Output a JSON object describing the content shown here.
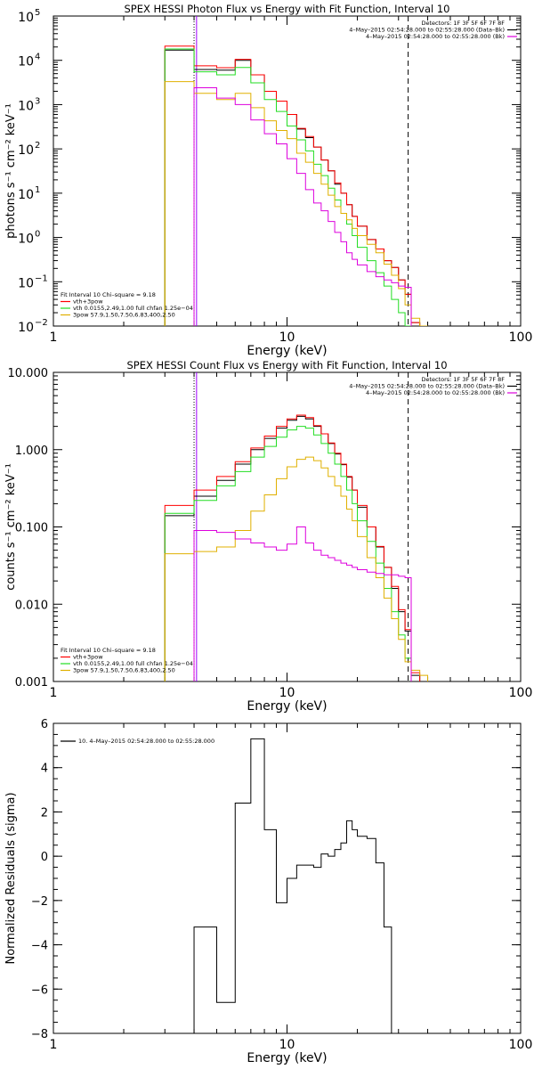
{
  "colors": {
    "black": "#000000",
    "red": "#ff0000",
    "green": "#22dd22",
    "yellow": "#e0b000",
    "magenta": "#dd00dd",
    "purple": "#a000ff"
  },
  "chart_data": [
    {
      "type": "line",
      "title": "SPEX HESSI Photon Flux vs Energy with Fit Function, Interval 10",
      "xlabel": "Energy (keV)",
      "ylabel": "photons s⁻¹ cm⁻² keV⁻¹",
      "xscale": "log",
      "yscale": "log",
      "xlim": [
        1,
        100
      ],
      "ylim": [
        0.01,
        100000
      ],
      "xticks": [
        {
          "v": 1,
          "label": "1"
        },
        {
          "v": 10,
          "label": "10"
        },
        {
          "v": 100,
          "label": "100"
        }
      ],
      "yticks": [
        {
          "v": 0.01,
          "base": "10",
          "exp": "−2"
        },
        {
          "v": 0.1,
          "base": "10",
          "exp": "−1"
        },
        {
          "v": 1,
          "base": "10",
          "exp": "0"
        },
        {
          "v": 10,
          "base": "10",
          "exp": "1"
        },
        {
          "v": 100,
          "base": "10",
          "exp": "2"
        },
        {
          "v": 1000,
          "base": "10",
          "exp": "3"
        },
        {
          "v": 10000,
          "base": "10",
          "exp": "4"
        },
        {
          "v": 100000,
          "base": "10",
          "exp": "5"
        }
      ],
      "vlines": [
        {
          "x": 4.0,
          "style": "dotted",
          "color": "black"
        },
        {
          "x": 4.1,
          "style": "solid",
          "color": "purple"
        },
        {
          "x": 33,
          "style": "dashed",
          "color": "black"
        }
      ],
      "header_lines": [
        "Detectors: 1F 3F 5F 6F 7F 8F",
        "4–May–2015 02:54:28.000 to 02:55:28.000 (Data–Bk)",
        "4–May–2015 02:54:28.000 to 02:55:28.000 (Bk)"
      ],
      "header_colors": [
        "",
        "black",
        "magenta"
      ],
      "legend_lines": [
        "Fit Interval 10   Chi–square = 9.18",
        "vth+3pow",
        "vth 0.0155,2.49,1.00  full chfan 1.25e−04",
        "3pow 57.9,1.50,7.50,6.83,400,2.50"
      ],
      "legend_colors": [
        "",
        "red",
        "green",
        "yellow"
      ],
      "edges": [
        3,
        4,
        5,
        6,
        7,
        8,
        9,
        10,
        11,
        12,
        13,
        14,
        15,
        16,
        17,
        18,
        19,
        20,
        22,
        24,
        26,
        28,
        30,
        32,
        34,
        37,
        40
      ],
      "series": [
        {
          "color": "black",
          "values": [
            17000,
            6200,
            6000,
            10000,
            4700,
            2000,
            1200,
            600,
            280,
            180,
            110,
            56,
            32,
            16,
            10,
            5.5,
            3.0,
            1.8,
            0.9,
            0.55,
            0.3,
            0.21,
            0.11,
            0.052,
            0.012,
            0.008
          ]
        },
        {
          "color": "red",
          "values": [
            21000,
            7500,
            6800,
            10500,
            4700,
            2000,
            1200,
            600,
            290,
            190,
            110,
            56,
            32,
            17,
            10,
            5.5,
            3.0,
            1.8,
            0.9,
            0.55,
            0.3,
            0.21,
            0.11,
            0.052,
            0.012,
            0.008
          ]
        },
        {
          "color": "green",
          "values": [
            18000,
            5500,
            4700,
            6900,
            3100,
            1300,
            700,
            330,
            160,
            90,
            45,
            25,
            13,
            7,
            3.5,
            2,
            1.1,
            0.6,
            0.3,
            0.16,
            0.08,
            0.04,
            0.02,
            0.01,
            0.008,
            0.008
          ]
        },
        {
          "color": "yellow",
          "values": [
            3300,
            1800,
            1300,
            1800,
            850,
            430,
            260,
            170,
            80,
            50,
            28,
            16,
            9,
            5,
            3.5,
            2.5,
            1.6,
            1.1,
            0.7,
            0.45,
            0.25,
            0.14,
            0.07,
            0.03,
            0.015,
            0.01
          ]
        },
        {
          "color": "magenta",
          "values": [
            0.005,
            2400,
            1400,
            1000,
            450,
            220,
            130,
            60,
            28,
            12,
            6,
            4,
            2.3,
            1.3,
            0.8,
            0.45,
            0.32,
            0.24,
            0.17,
            0.13,
            0.11,
            0.095,
            0.08,
            0.075,
            0.008,
            0.008
          ]
        }
      ]
    },
    {
      "type": "line",
      "title": "SPEX HESSI Count Flux vs Energy with Fit Function, Interval 10",
      "xlabel": "Energy (keV)",
      "ylabel": "counts s⁻¹ cm⁻² keV⁻¹",
      "xscale": "log",
      "yscale": "log",
      "xlim": [
        1,
        100
      ],
      "ylim": [
        0.001,
        10
      ],
      "xticks": [
        {
          "v": 1,
          "label": "1"
        },
        {
          "v": 10,
          "label": "10"
        },
        {
          "v": 100,
          "label": "100"
        }
      ],
      "yticks": [
        {
          "v": 0.001,
          "label": "0.001"
        },
        {
          "v": 0.01,
          "label": "0.010"
        },
        {
          "v": 0.1,
          "label": "0.100"
        },
        {
          "v": 1,
          "label": "1.000"
        },
        {
          "v": 10,
          "label": "10.000"
        }
      ],
      "vlines": [
        {
          "x": 4.0,
          "style": "dotted",
          "color": "black"
        },
        {
          "x": 4.1,
          "style": "solid",
          "color": "purple"
        },
        {
          "x": 33,
          "style": "dashed",
          "color": "black"
        }
      ],
      "header_lines": [
        "Detectors: 1F 3F 5F 6F 7F 8F",
        "4–May–2015 02:54:28.000 to 02:55:28.000 (Data–Bk)",
        "4–May–2015 02:54:28.000 to 02:55:28.000 (Bk)"
      ],
      "header_colors": [
        "",
        "black",
        "magenta"
      ],
      "legend_lines": [
        "Fit Interval 10   Chi–square = 9.18",
        "vth+3pow",
        "vth 0.0155,2.49,1.00  full chfan 1.25e−04",
        "3pow 57.9,1.50,7.50,6.83,400,2.50"
      ],
      "legend_colors": [
        "",
        "red",
        "green",
        "yellow"
      ],
      "edges": [
        3,
        4,
        5,
        6,
        7,
        8,
        9,
        10,
        11,
        12,
        13,
        14,
        15,
        16,
        17,
        18,
        19,
        20,
        22,
        24,
        26,
        28,
        30,
        32,
        34,
        37,
        40,
        45
      ],
      "series": [
        {
          "color": "black",
          "values": [
            0.14,
            0.25,
            0.4,
            0.65,
            1.0,
            1.4,
            1.9,
            2.4,
            2.7,
            2.5,
            2.0,
            1.6,
            1.2,
            0.88,
            0.64,
            0.44,
            0.3,
            0.18,
            0.1,
            0.055,
            0.03,
            0.016,
            0.008,
            0.0045,
            0.0012,
            0.0009,
            0.0009
          ]
        },
        {
          "color": "red",
          "values": [
            0.19,
            0.3,
            0.45,
            0.7,
            1.05,
            1.5,
            2.0,
            2.5,
            2.8,
            2.6,
            2.05,
            1.6,
            1.22,
            0.9,
            0.65,
            0.45,
            0.3,
            0.19,
            0.1,
            0.056,
            0.03,
            0.017,
            0.0085,
            0.0047,
            0.0013,
            0.0009,
            0.0009
          ]
        },
        {
          "color": "green",
          "values": [
            0.15,
            0.22,
            0.34,
            0.52,
            0.8,
            1.1,
            1.45,
            1.8,
            2.0,
            1.9,
            1.55,
            1.2,
            0.9,
            0.65,
            0.45,
            0.3,
            0.2,
            0.12,
            0.065,
            0.034,
            0.016,
            0.008,
            0.004,
            0.002,
            0.0009,
            0.0009,
            0.0009
          ]
        },
        {
          "color": "yellow",
          "values": [
            0.045,
            0.048,
            0.055,
            0.09,
            0.16,
            0.26,
            0.42,
            0.6,
            0.75,
            0.8,
            0.72,
            0.58,
            0.45,
            0.34,
            0.25,
            0.17,
            0.12,
            0.075,
            0.04,
            0.022,
            0.012,
            0.0065,
            0.0035,
            0.0018,
            0.0014,
            0.0012,
            0.0009
          ]
        },
        {
          "color": "magenta",
          "values": [
            0.0005,
            0.09,
            0.085,
            0.07,
            0.062,
            0.055,
            0.05,
            0.06,
            0.1,
            0.062,
            0.05,
            0.043,
            0.04,
            0.037,
            0.034,
            0.032,
            0.03,
            0.028,
            0.026,
            0.025,
            0.024,
            0.024,
            0.023,
            0.022,
            0.0009,
            0.0009,
            0.0009
          ]
        }
      ]
    },
    {
      "type": "line",
      "title": "",
      "xlabel": "Energy (keV)",
      "ylabel": "Normalized Residuals (sigma)",
      "xscale": "log",
      "yscale": "linear",
      "xlim": [
        1,
        100
      ],
      "ylim": [
        -8,
        6
      ],
      "xticks": [
        {
          "v": 1,
          "label": "1"
        },
        {
          "v": 10,
          "label": "10"
        },
        {
          "v": 100,
          "label": "100"
        }
      ],
      "yticks": [
        {
          "v": -8,
          "label": "−8"
        },
        {
          "v": -6,
          "label": "−6"
        },
        {
          "v": -4,
          "label": "−4"
        },
        {
          "v": -2,
          "label": "−2"
        },
        {
          "v": 0,
          "label": "0"
        },
        {
          "v": 2,
          "label": "2"
        },
        {
          "v": 4,
          "label": "4"
        },
        {
          "v": 6,
          "label": "6"
        }
      ],
      "vlines": [],
      "header_lines": [],
      "header_colors": [],
      "legend_lines": [
        "10.  4–May–2015 02:54:28.000 to 02:55:28.000"
      ],
      "legend_colors": [
        "black"
      ],
      "edges": [
        4,
        5,
        6,
        7,
        8,
        9,
        10,
        11,
        12,
        13,
        14,
        15,
        16,
        17,
        18,
        19,
        20,
        22,
        24,
        26,
        28,
        30,
        32,
        34
      ],
      "series": [
        {
          "color": "black",
          "values": [
            -3.2,
            -6.6,
            2.4,
            5.3,
            1.2,
            -2.1,
            -1.0,
            -0.4,
            -0.4,
            -0.5,
            0.1,
            0.0,
            0.3,
            0.6,
            1.6,
            1.2,
            0.9,
            0.8,
            -0.3,
            -3.2,
            -8.1,
            -8.1,
            -8.1
          ]
        }
      ]
    }
  ]
}
